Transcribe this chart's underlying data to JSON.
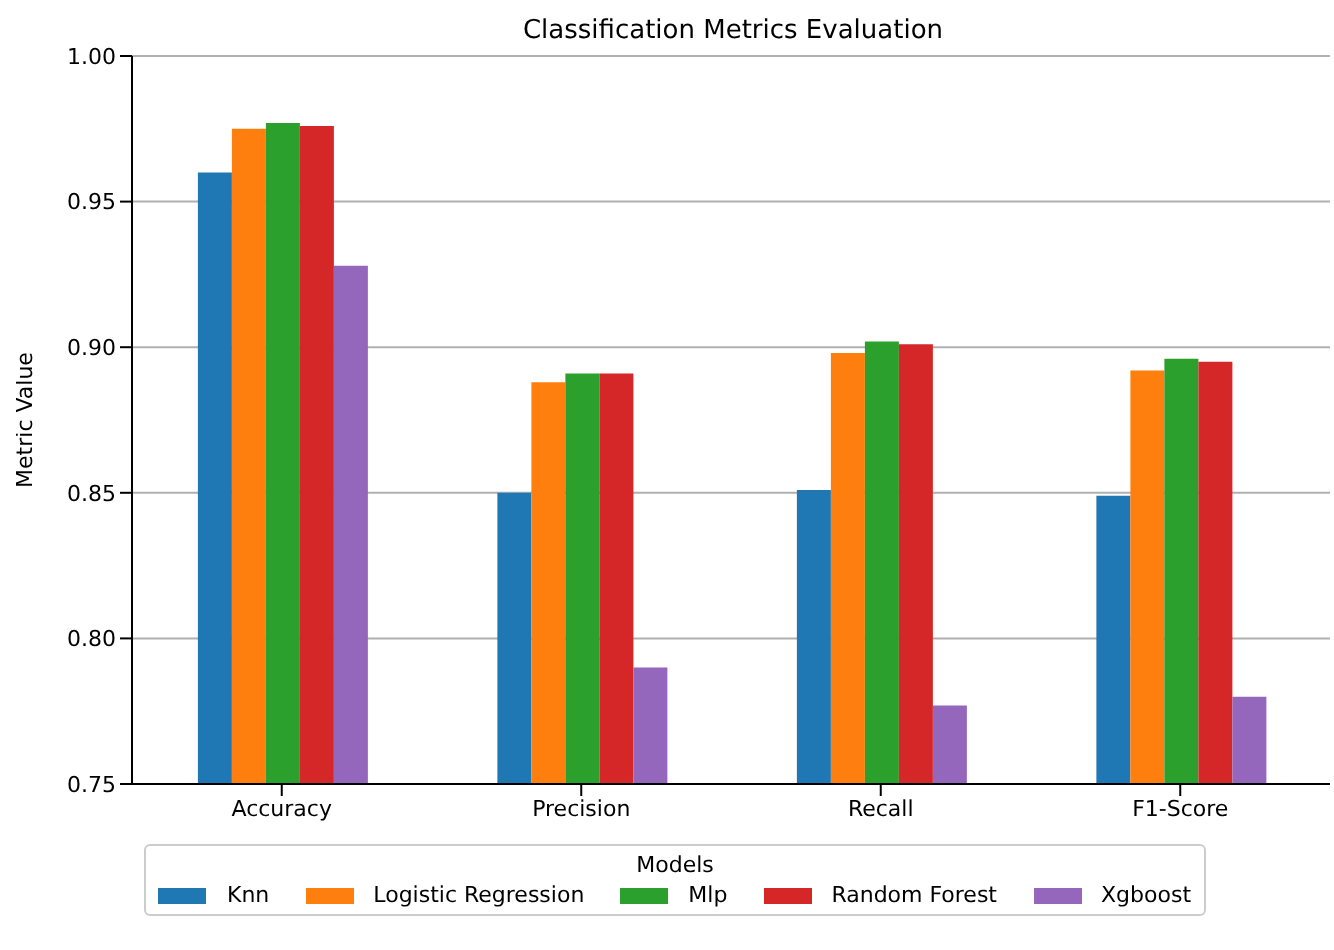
{
  "chart_data": {
    "type": "bar",
    "title": "Classification Metrics Evaluation",
    "xlabel": null,
    "ylabel": "Metric Value",
    "legend_title": "Models",
    "categories": [
      "Accuracy",
      "Precision",
      "Recall",
      "F1-Score"
    ],
    "series": [
      {
        "name": "Knn",
        "color": "#1f77b4",
        "values": [
          0.96,
          0.85,
          0.851,
          0.849
        ]
      },
      {
        "name": "Logistic Regression",
        "color": "#ff7f0e",
        "values": [
          0.975,
          0.888,
          0.898,
          0.892
        ]
      },
      {
        "name": "Mlp",
        "color": "#2ca02c",
        "values": [
          0.977,
          0.891,
          0.902,
          0.896
        ]
      },
      {
        "name": "Random Forest",
        "color": "#d62728",
        "values": [
          0.976,
          0.891,
          0.901,
          0.895
        ]
      },
      {
        "name": "Xgboost",
        "color": "#9467bd",
        "values": [
          0.928,
          0.79,
          0.777,
          0.78
        ]
      }
    ],
    "ylim": [
      0.75,
      1.0
    ],
    "yticks": [
      0.75,
      {
        "value": 0.8,
        "label": "0.80"
      },
      0.85,
      {
        "value": 0.9,
        "label": "0.90"
      },
      0.95,
      {
        "value": 1.0,
        "label": "1.00"
      }
    ],
    "grid": "y",
    "legend": "bottom"
  }
}
